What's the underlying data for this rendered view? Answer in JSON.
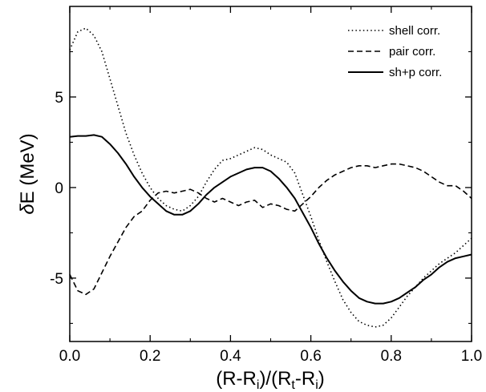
{
  "chart_data": {
    "type": "line",
    "xlabel": "(R-R_i)/(R_t-R_i)",
    "ylabel": "δE (MeV)",
    "xlim": [
      0.0,
      1.0
    ],
    "ylim": [
      -8.5,
      10.0
    ],
    "x_ticks": [
      "0.0",
      "0.2",
      "0.4",
      "0.6",
      "0.8",
      "1.0"
    ],
    "y_ticks": [
      "-5",
      "0",
      "5"
    ],
    "legend_position": "top-right",
    "series": [
      {
        "name": "shell corr.",
        "style": "dotted",
        "x": [
          0.0,
          0.02,
          0.04,
          0.06,
          0.08,
          0.1,
          0.12,
          0.14,
          0.16,
          0.18,
          0.2,
          0.22,
          0.24,
          0.26,
          0.28,
          0.3,
          0.32,
          0.34,
          0.36,
          0.38,
          0.4,
          0.42,
          0.44,
          0.46,
          0.48,
          0.5,
          0.52,
          0.54,
          0.56,
          0.58,
          0.6,
          0.62,
          0.64,
          0.66,
          0.68,
          0.7,
          0.72,
          0.74,
          0.76,
          0.78,
          0.8,
          0.82,
          0.84,
          0.86,
          0.88,
          0.9,
          0.92,
          0.94,
          0.96,
          0.98,
          1.0
        ],
        "y": [
          7.6,
          8.6,
          8.8,
          8.4,
          7.5,
          6.0,
          4.5,
          3.0,
          1.8,
          0.8,
          0.0,
          -0.6,
          -1.0,
          -1.2,
          -1.3,
          -1.0,
          -0.5,
          0.3,
          1.0,
          1.5,
          1.6,
          1.8,
          2.0,
          2.2,
          2.1,
          1.8,
          1.6,
          1.4,
          0.8,
          -0.4,
          -1.6,
          -2.9,
          -4.1,
          -5.2,
          -6.2,
          -6.9,
          -7.4,
          -7.6,
          -7.7,
          -7.6,
          -7.2,
          -6.6,
          -6.0,
          -5.5,
          -5.0,
          -4.6,
          -4.2,
          -3.9,
          -3.6,
          -3.2,
          -2.8
        ]
      },
      {
        "name": "pair corr.",
        "style": "dashed",
        "x": [
          0.0,
          0.02,
          0.04,
          0.06,
          0.08,
          0.1,
          0.12,
          0.14,
          0.16,
          0.18,
          0.2,
          0.22,
          0.24,
          0.26,
          0.28,
          0.3,
          0.32,
          0.34,
          0.36,
          0.38,
          0.4,
          0.42,
          0.44,
          0.46,
          0.48,
          0.5,
          0.52,
          0.54,
          0.56,
          0.58,
          0.6,
          0.62,
          0.64,
          0.66,
          0.68,
          0.7,
          0.72,
          0.74,
          0.76,
          0.78,
          0.8,
          0.82,
          0.84,
          0.86,
          0.88,
          0.9,
          0.92,
          0.94,
          0.96,
          0.98,
          1.0
        ],
        "y": [
          -4.8,
          -5.7,
          -5.9,
          -5.6,
          -4.7,
          -3.8,
          -3.0,
          -2.2,
          -1.6,
          -1.3,
          -0.7,
          -0.3,
          -0.2,
          -0.3,
          -0.2,
          -0.1,
          -0.3,
          -0.6,
          -0.8,
          -0.6,
          -0.8,
          -1.0,
          -0.8,
          -0.7,
          -1.1,
          -0.9,
          -1.0,
          -1.2,
          -1.3,
          -0.9,
          -0.5,
          0.0,
          0.4,
          0.7,
          0.9,
          1.1,
          1.2,
          1.2,
          1.1,
          1.2,
          1.3,
          1.3,
          1.2,
          1.1,
          0.9,
          0.6,
          0.3,
          0.1,
          0.1,
          -0.2,
          -0.6
        ]
      },
      {
        "name": "sh+p corr.",
        "style": "solid",
        "x": [
          0.0,
          0.02,
          0.04,
          0.06,
          0.08,
          0.1,
          0.12,
          0.14,
          0.16,
          0.18,
          0.2,
          0.22,
          0.24,
          0.26,
          0.28,
          0.3,
          0.32,
          0.34,
          0.36,
          0.38,
          0.4,
          0.42,
          0.44,
          0.46,
          0.48,
          0.5,
          0.52,
          0.54,
          0.56,
          0.58,
          0.6,
          0.62,
          0.64,
          0.66,
          0.68,
          0.7,
          0.72,
          0.74,
          0.76,
          0.78,
          0.8,
          0.82,
          0.84,
          0.86,
          0.88,
          0.9,
          0.92,
          0.94,
          0.96,
          0.98,
          1.0
        ],
        "y": [
          2.8,
          2.85,
          2.85,
          2.9,
          2.8,
          2.4,
          1.9,
          1.3,
          0.6,
          0.0,
          -0.5,
          -0.9,
          -1.3,
          -1.5,
          -1.5,
          -1.3,
          -0.9,
          -0.4,
          0.0,
          0.3,
          0.6,
          0.8,
          1.0,
          1.1,
          1.1,
          0.9,
          0.5,
          0.0,
          -0.6,
          -1.4,
          -2.2,
          -3.1,
          -3.9,
          -4.6,
          -5.2,
          -5.7,
          -6.1,
          -6.3,
          -6.4,
          -6.4,
          -6.3,
          -6.1,
          -5.8,
          -5.5,
          -5.1,
          -4.8,
          -4.4,
          -4.1,
          -3.9,
          -3.8,
          -3.7
        ]
      }
    ]
  }
}
